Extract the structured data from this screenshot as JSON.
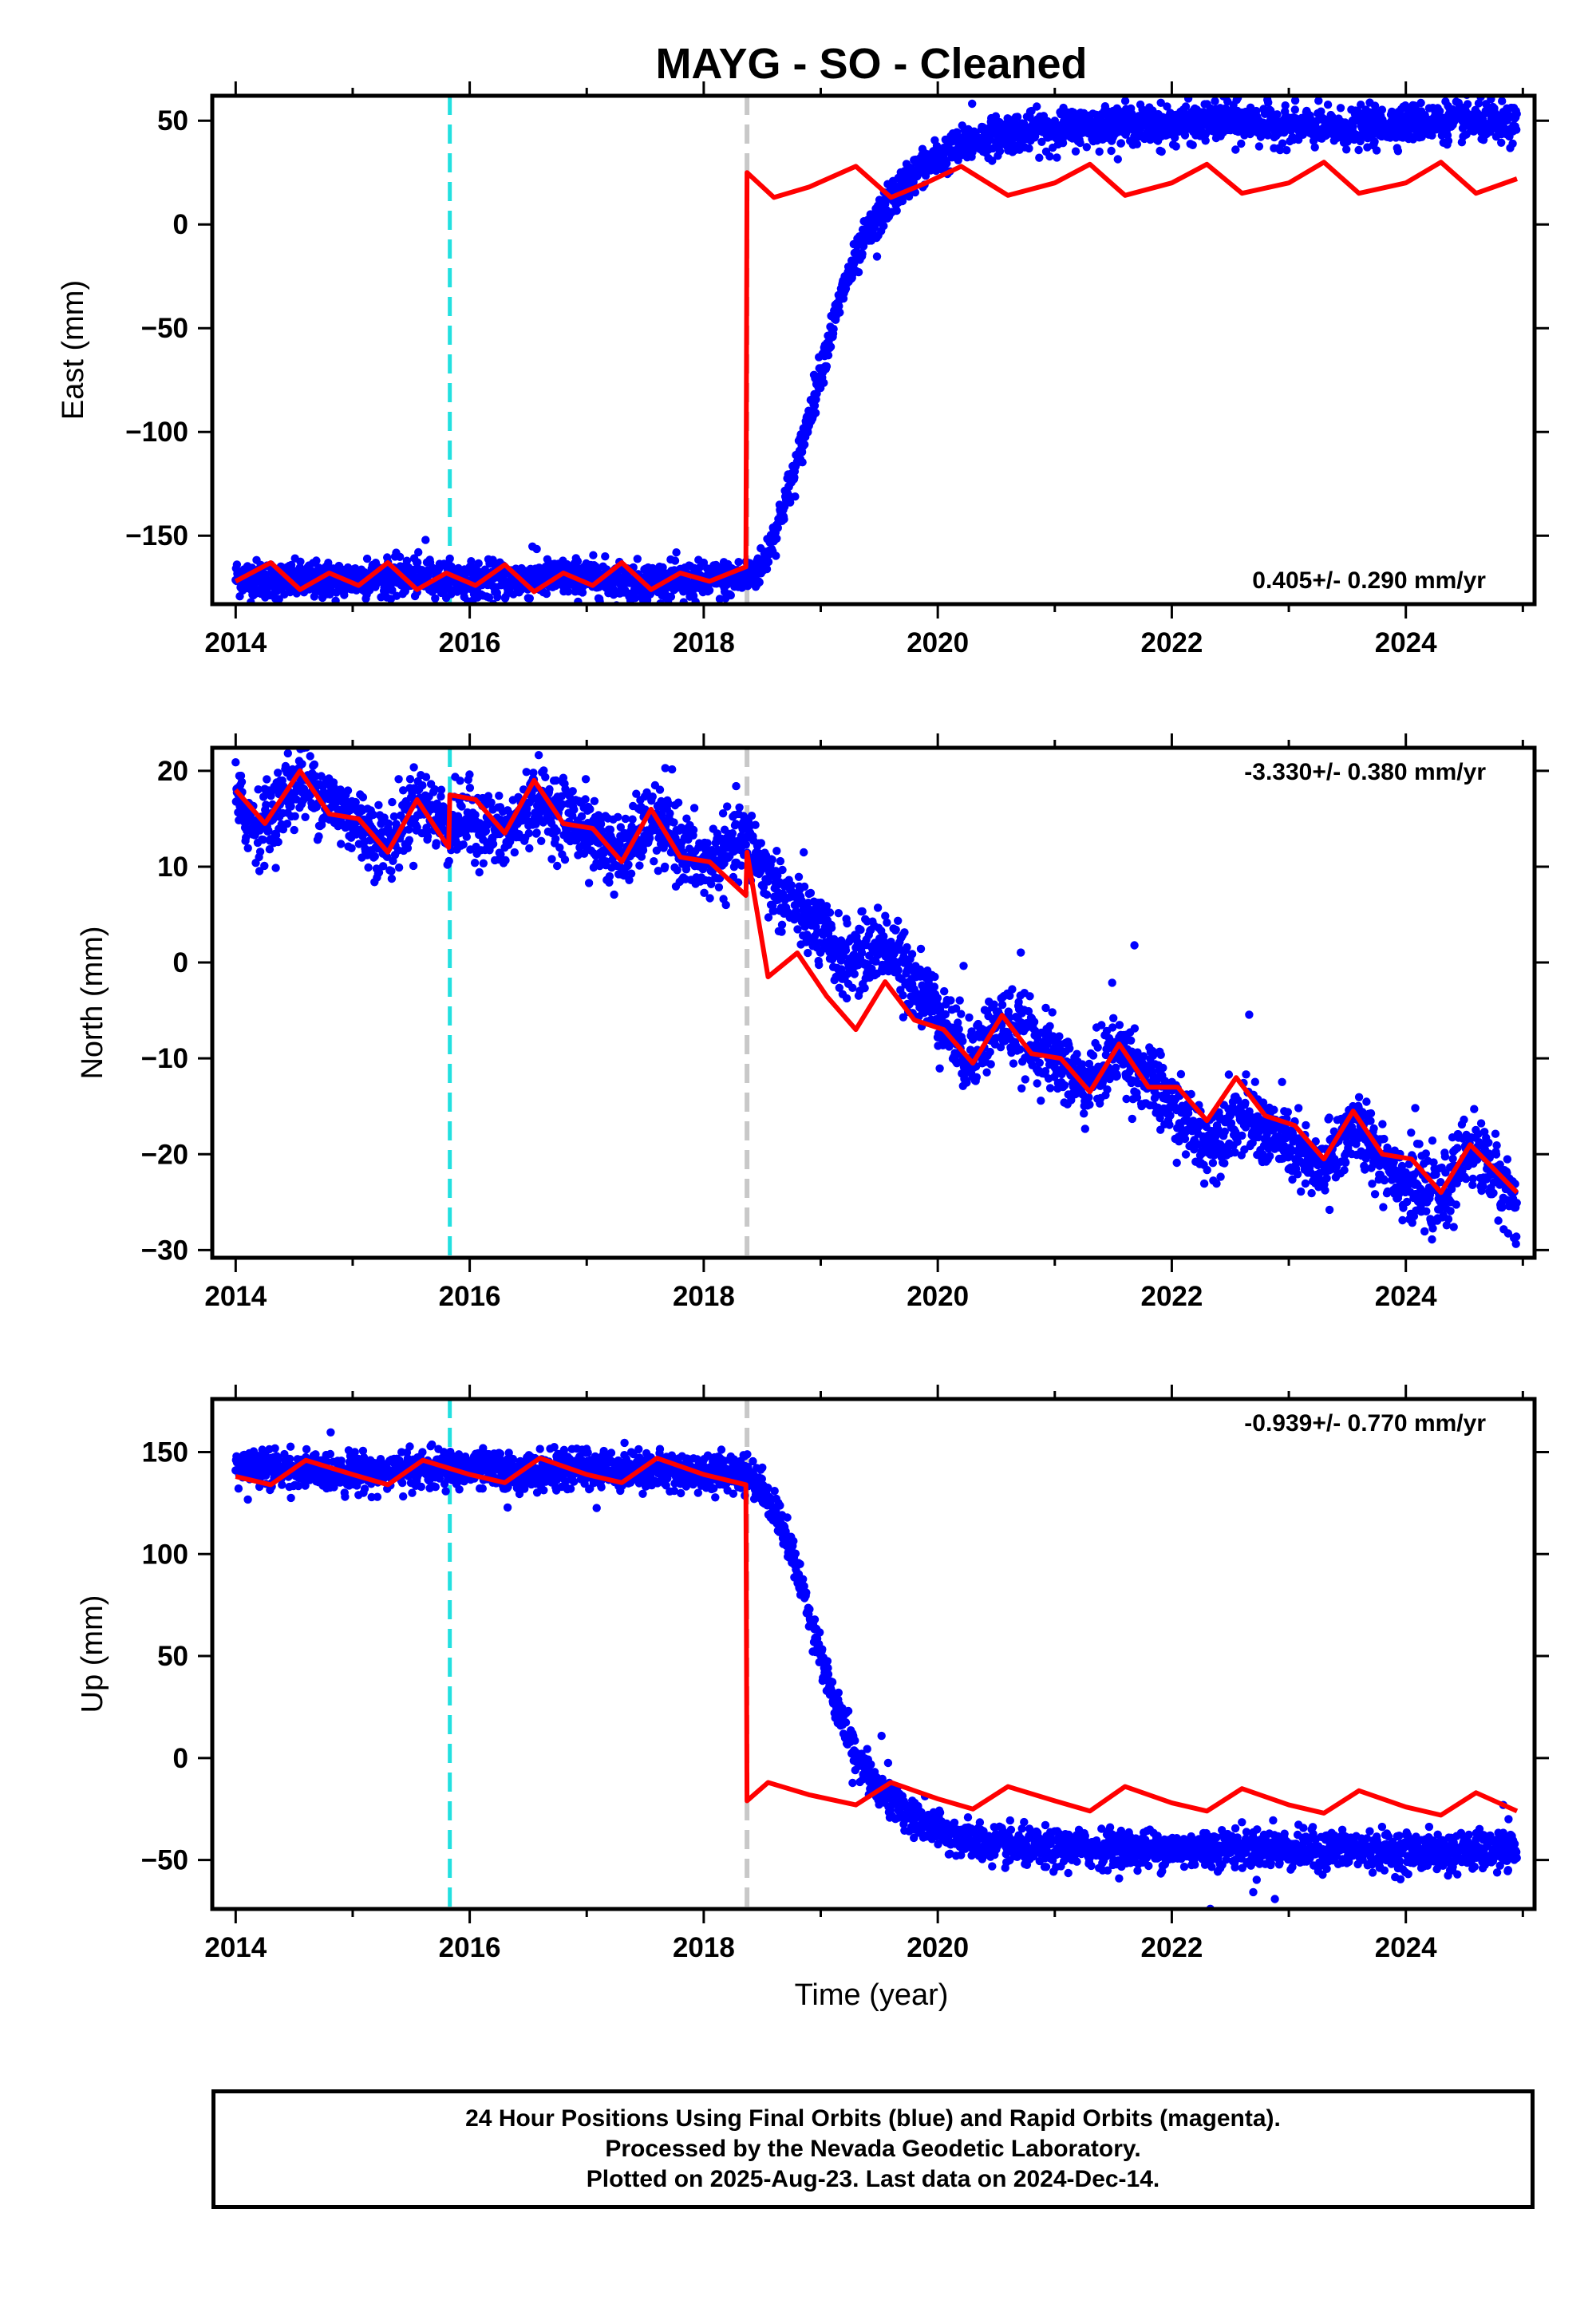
{
  "chart_data": {
    "type": "scatter",
    "title": "MAYG  - SO - Cleaned",
    "xlabel": "Time (year)",
    "xlim": [
      2013.8,
      2025.1
    ],
    "xticks": [
      2014,
      2016,
      2018,
      2020,
      2022,
      2024
    ],
    "xtick_labels": [
      "2014",
      "2016",
      "2018",
      "2020",
      "2022",
      "2024"
    ],
    "cyan_dashed_line_x": 2015.83,
    "gray_dashed_line_x": 2018.37,
    "colors": {
      "data_points": "#0000ff",
      "model_line": "#ff0000",
      "cyan_line": "#22e0e0",
      "gray_line": "#c8c8c8"
    },
    "panels": [
      {
        "component": "east",
        "ylabel": "East (mm)",
        "ylim": [
          -183,
          62
        ],
        "yticks": [
          50,
          0,
          -50,
          -100,
          -150
        ],
        "ytick_labels": [
          "50",
          "0",
          "−50",
          "−100",
          "−150"
        ],
        "rate_text": "0.405+/- 0.290 mm/yr",
        "rate_position": "bottom-right",
        "series": [
          {
            "name": "data",
            "x": [
              2014.0,
              2014.5,
              2015.0,
              2015.5,
              2016.0,
              2016.5,
              2017.0,
              2017.5,
              2018.0,
              2018.37,
              2018.5,
              2018.6,
              2018.8,
              2019.0,
              2019.2,
              2019.4,
              2019.6,
              2019.8,
              2020.0,
              2020.3,
              2020.6,
              2021.0,
              2021.5,
              2022.0,
              2022.5,
              2023.0,
              2023.5,
              2024.0,
              2024.5,
              2024.95
            ],
            "y": [
              -170,
              -172,
              -171,
              -170,
              -172,
              -171,
              -170,
              -172,
              -172,
              -170,
              -165,
              -150,
              -115,
              -70,
              -30,
              -5,
              12,
              25,
              32,
              40,
              44,
              46,
              48,
              48,
              50,
              47,
              46,
              49,
              50,
              47
            ]
          },
          {
            "name": "model",
            "x": [
              2014.0,
              2014.3,
              2014.55,
              2014.8,
              2015.05,
              2015.3,
              2015.55,
              2015.8,
              2016.05,
              2016.3,
              2016.55,
              2016.8,
              2017.05,
              2017.3,
              2017.55,
              2017.8,
              2018.05,
              2018.36,
              2018.37,
              2018.6,
              2018.9,
              2019.3,
              2019.6,
              2019.9,
              2020.2,
              2020.6,
              2021.0,
              2021.3,
              2021.6,
              2022.0,
              2022.3,
              2022.6,
              2023.0,
              2023.3,
              2023.6,
              2024.0,
              2024.3,
              2024.6,
              2024.95
            ],
            "y": [
              -172,
              -163,
              -176,
              -168,
              -174,
              -163,
              -176,
              -168,
              -174,
              -164,
              -177,
              -168,
              -174,
              -163,
              -176,
              -168,
              -172,
              -165,
              25,
              13,
              18,
              28,
              13,
              20,
              28,
              14,
              20,
              29,
              14,
              20,
              29,
              15,
              20,
              30,
              15,
              20,
              30,
              15,
              22
            ]
          }
        ]
      },
      {
        "component": "north",
        "ylabel": "North (mm)",
        "ylim": [
          -30.8,
          22.4
        ],
        "yticks": [
          20,
          10,
          0,
          -10,
          -20,
          -30
        ],
        "ytick_labels": [
          "20",
          "10",
          "0",
          "−10",
          "−20",
          "−30"
        ],
        "rate_text": "-3.330+/- 0.380 mm/yr",
        "rate_position": "top-right",
        "series": [
          {
            "name": "data",
            "x": [
              2014.0,
              2014.2,
              2014.55,
              2015.0,
              2015.3,
              2015.55,
              2015.83,
              2016.0,
              2016.3,
              2016.55,
              2017.0,
              2017.3,
              2017.55,
              2018.0,
              2018.37,
              2018.6,
              2019.0,
              2019.2,
              2019.55,
              2020.0,
              2020.25,
              2020.55,
              2021.0,
              2021.25,
              2021.55,
              2022.0,
              2022.3,
              2022.55,
              2023.0,
              2023.25,
              2023.55,
              2024.0,
              2024.3,
              2024.55,
              2024.95
            ],
            "y": [
              17,
              14,
              19,
              15,
              12,
              17,
              14,
              15,
              13,
              17,
              14,
              11,
              15,
              10,
              13,
              8,
              3,
              0,
              2,
              -5,
              -10,
              -6,
              -10,
              -13,
              -9,
              -15,
              -19,
              -16,
              -19,
              -22,
              -17,
              -23,
              -25,
              -19,
              -25
            ]
          },
          {
            "name": "model",
            "x": [
              2014.0,
              2014.25,
              2014.55,
              2014.8,
              2015.05,
              2015.3,
              2015.55,
              2015.82,
              2015.83,
              2016.05,
              2016.3,
              2016.55,
              2016.8,
              2017.05,
              2017.3,
              2017.55,
              2017.8,
              2018.05,
              2018.36,
              2018.37,
              2018.55,
              2018.8,
              2019.05,
              2019.3,
              2019.55,
              2019.8,
              2020.05,
              2020.3,
              2020.55,
              2020.8,
              2021.05,
              2021.3,
              2021.55,
              2021.8,
              2022.05,
              2022.3,
              2022.55,
              2022.8,
              2023.05,
              2023.3,
              2023.55,
              2023.8,
              2024.05,
              2024.3,
              2024.55,
              2024.95
            ],
            "y": [
              18,
              14.5,
              20,
              15.5,
              15,
              11.5,
              17,
              12,
              17.5,
              17,
              13.5,
              19,
              14.5,
              14,
              10.5,
              16,
              11,
              10.5,
              7,
              11.5,
              -1.5,
              1,
              -3.5,
              -7,
              -2,
              -6,
              -7,
              -10.5,
              -5.5,
              -9.5,
              -10,
              -13.5,
              -8.5,
              -13,
              -13,
              -16.5,
              -12,
              -16,
              -17,
              -20.5,
              -15.5,
              -20,
              -20.5,
              -24,
              -19,
              -24
            ]
          }
        ]
      },
      {
        "component": "up",
        "ylabel": "Up (mm)",
        "ylim": [
          -74,
          176
        ],
        "yticks": [
          150,
          100,
          50,
          0,
          -50
        ],
        "ytick_labels": [
          "150",
          "100",
          "50",
          "0",
          "−50"
        ],
        "rate_text": "-0.939+/- 0.770 mm/yr",
        "rate_position": "top-right",
        "series": [
          {
            "name": "data",
            "x": [
              2014.0,
              2014.5,
              2015.0,
              2015.5,
              2016.0,
              2016.5,
              2017.0,
              2017.5,
              2018.0,
              2018.37,
              2018.5,
              2018.7,
              2018.9,
              2019.1,
              2019.3,
              2019.5,
              2019.8,
              2020.1,
              2020.5,
              2021.0,
              2021.5,
              2022.0,
              2022.5,
              2023.0,
              2023.5,
              2024.0,
              2024.5,
              2024.95
            ],
            "y": [
              143,
              141,
              140,
              141,
              142,
              140,
              142,
              141,
              140,
              140,
              133,
              110,
              72,
              30,
              2,
              -15,
              -30,
              -38,
              -43,
              -45,
              -44,
              -45,
              -44,
              -45,
              -45,
              -46,
              -46,
              -46
            ]
          },
          {
            "name": "model",
            "x": [
              2014.0,
              2014.3,
              2014.6,
              2015.0,
              2015.3,
              2015.6,
              2016.0,
              2016.3,
              2016.6,
              2017.0,
              2017.3,
              2017.6,
              2018.0,
              2018.36,
              2018.37,
              2018.55,
              2018.9,
              2019.3,
              2019.6,
              2020.0,
              2020.3,
              2020.6,
              2021.0,
              2021.3,
              2021.6,
              2022.0,
              2022.3,
              2022.6,
              2023.0,
              2023.3,
              2023.6,
              2024.0,
              2024.3,
              2024.6,
              2024.95
            ],
            "y": [
              138,
              134,
              146,
              139,
              134,
              146,
              139,
              135,
              147,
              139,
              135,
              147,
              139,
              134,
              -21,
              -12,
              -18,
              -23,
              -12,
              -20,
              -25,
              -14,
              -21,
              -26,
              -14,
              -22,
              -26,
              -15,
              -23,
              -27,
              -16,
              -24,
              -28,
              -17,
              -26
            ]
          }
        ]
      }
    ]
  },
  "footer": {
    "line1": "24 Hour Positions Using Final Orbits (blue) and Rapid Orbits (magenta).",
    "line2": "Processed by the Nevada Geodetic Laboratory.",
    "line3": "Plotted on 2025-Aug-23. Last data on 2024-Dec-14."
  }
}
